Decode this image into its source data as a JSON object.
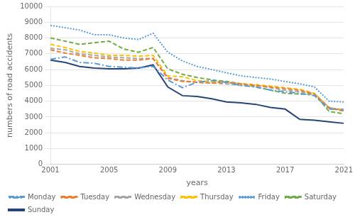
{
  "chart_data": {
    "type": "line",
    "x": [
      2001,
      2002,
      2003,
      2004,
      2005,
      2006,
      2007,
      2008,
      2009,
      2010,
      2011,
      2012,
      2013,
      2014,
      2015,
      2016,
      2017,
      2018,
      2019,
      2020,
      2021
    ],
    "series": [
      {
        "name": "Monday",
        "color": "#5b9bd5",
        "line_style": "dashdot",
        "values": [
          6650,
          6800,
          6450,
          6400,
          6200,
          6150,
          6100,
          6200,
          5350,
          4850,
          5200,
          5300,
          5200,
          5000,
          4900,
          4700,
          4600,
          4500,
          4350,
          3500,
          3480
        ]
      },
      {
        "name": "Tuesday",
        "color": "#ed7d31",
        "line_style": "dashed",
        "values": [
          7250,
          7050,
          6900,
          6750,
          6700,
          6600,
          6600,
          6700,
          5450,
          5250,
          5200,
          5150,
          5200,
          5100,
          5000,
          4900,
          4800,
          4700,
          4450,
          3550,
          3380
        ]
      },
      {
        "name": "Wednesday",
        "color": "#a5a5a5",
        "line_style": "dashed",
        "values": [
          7350,
          7250,
          7000,
          6900,
          6800,
          6750,
          6700,
          6700,
          5500,
          5300,
          5200,
          5150,
          5100,
          5000,
          5000,
          4850,
          4700,
          4600,
          4450,
          3600,
          3400
        ]
      },
      {
        "name": "Thursday",
        "color": "#ffc000",
        "line_style": "dashed",
        "values": [
          7600,
          7400,
          7150,
          7050,
          6900,
          6900,
          6850,
          6900,
          5600,
          5550,
          5300,
          5250,
          5200,
          5100,
          5050,
          4950,
          4850,
          4750,
          4500,
          3600,
          3450
        ]
      },
      {
        "name": "Friday",
        "color": "#5b9bd5",
        "line_style": "dotted",
        "values": [
          8800,
          8650,
          8500,
          8200,
          8200,
          8000,
          7900,
          8300,
          7100,
          6550,
          6200,
          6000,
          5800,
          5600,
          5500,
          5400,
          5250,
          5100,
          4900,
          4000,
          3950
        ]
      },
      {
        "name": "Saturday",
        "color": "#70ad47",
        "line_style": "dashed",
        "values": [
          8000,
          7800,
          7600,
          7700,
          7800,
          7300,
          7100,
          7400,
          6050,
          5700,
          5500,
          5350,
          5250,
          5100,
          4900,
          4700,
          4500,
          4450,
          4450,
          3350,
          3200
        ]
      },
      {
        "name": "Sunday",
        "color": "#264478",
        "line_style": "solid",
        "values": [
          6600,
          6450,
          6200,
          6100,
          6050,
          6050,
          6100,
          6300,
          4900,
          4350,
          4300,
          4150,
          3950,
          3900,
          3800,
          3600,
          3500,
          2850,
          2800,
          2700,
          2600
        ]
      }
    ],
    "xlabel": "years",
    "ylabel": "numbers of road accidents",
    "xlim": [
      2001,
      2021
    ],
    "xticks": [
      2001,
      2005,
      2009,
      2013,
      2017,
      2021
    ],
    "ylim": [
      0,
      10000
    ],
    "yticks": [
      0,
      1000,
      2000,
      3000,
      4000,
      5000,
      6000,
      7000,
      8000,
      9000,
      10000
    ],
    "grid": "y",
    "legend": "lower left"
  }
}
